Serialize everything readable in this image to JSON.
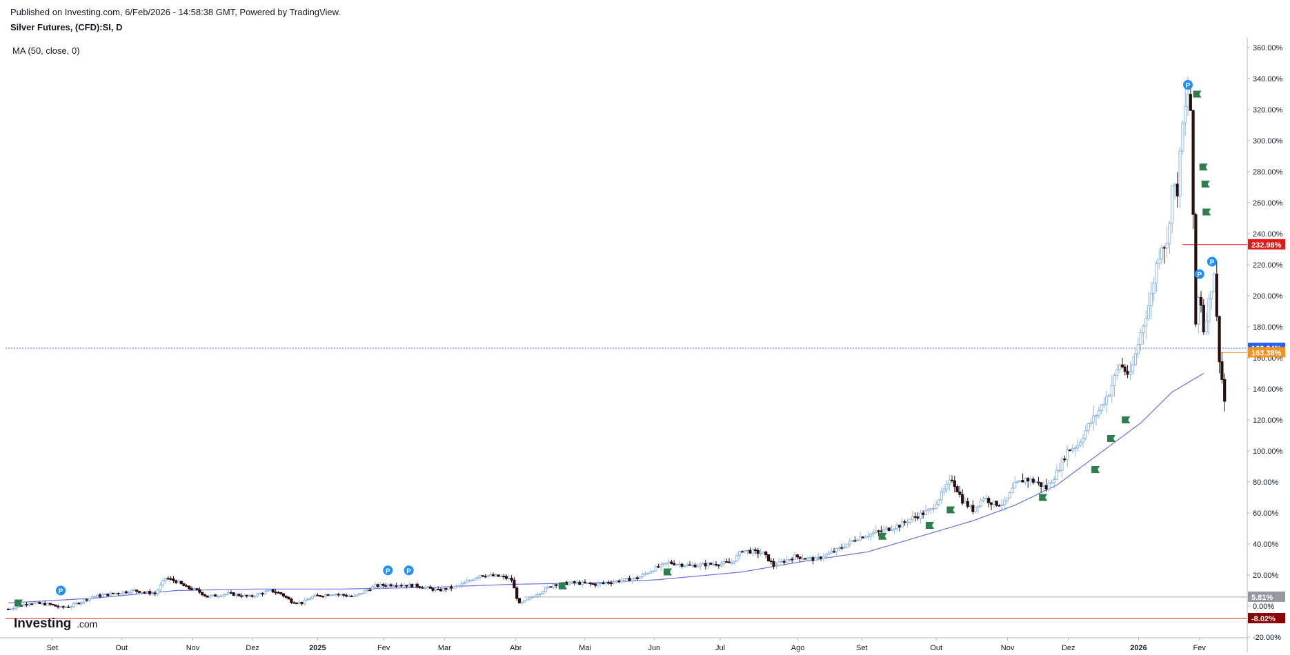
{
  "header": {
    "published": "Published on Investing.com, 6/Feb/2026 - 14:58:38 GMT, Powered by TradingView.",
    "symbol": "Silver Futures, (CFD):SI, D",
    "indicator": "MA (50, close, 0)"
  },
  "logo": {
    "brand": "Investing",
    "suffix": ".com"
  },
  "colors": {
    "up": "#8fb7e3",
    "down": "#2a0d0d",
    "ma": "#6a6ee8",
    "grid": "#e0e3eb",
    "red_line": "#e31919",
    "orange_line": "#f7931a",
    "blue_dotted": "#2962ff",
    "flag": "#2e7d4f",
    "p_marker": "#1e90ff"
  },
  "chart_data": {
    "type": "candlestick",
    "title": "Silver Futures, (CFD):SI, D",
    "ylim": [
      -30,
      360
    ],
    "y_unit": "%",
    "grid": false,
    "y_ticks": [
      "360.00%",
      "340.00%",
      "320.00%",
      "300.00%",
      "280.00%",
      "260.00%",
      "240.00%",
      "220.00%",
      "200.00%",
      "180.00%",
      "160.00%",
      "140.00%",
      "120.00%",
      "100.00%",
      "80.00%",
      "60.00%",
      "40.00%",
      "20.00%",
      "0.00%",
      "-20.00%"
    ],
    "x_ticks": [
      {
        "label": "Set",
        "t": 4.2,
        "bold": false
      },
      {
        "label": "Out",
        "t": 10.8,
        "bold": false
      },
      {
        "label": "Nov",
        "t": 17.6,
        "bold": false
      },
      {
        "label": "Dez",
        "t": 23.3,
        "bold": false
      },
      {
        "label": "2025",
        "t": 29.5,
        "bold": true
      },
      {
        "label": "Fev",
        "t": 35.8,
        "bold": false
      },
      {
        "label": "Mar",
        "t": 41.6,
        "bold": false
      },
      {
        "label": "Abr",
        "t": 48.4,
        "bold": false
      },
      {
        "label": "Mai",
        "t": 55.0,
        "bold": false
      },
      {
        "label": "Jun",
        "t": 61.6,
        "bold": false
      },
      {
        "label": "Jul",
        "t": 67.9,
        "bold": false
      },
      {
        "label": "Ago",
        "t": 75.3,
        "bold": false
      },
      {
        "label": "Set",
        "t": 81.4,
        "bold": false
      },
      {
        "label": "Out",
        "t": 88.5,
        "bold": false
      },
      {
        "label": "Nov",
        "t": 95.3,
        "bold": false
      },
      {
        "label": "Dez",
        "t": 101.1,
        "bold": false
      },
      {
        "label": "2026",
        "t": 107.8,
        "bold": true
      },
      {
        "label": "Fev",
        "t": 113.6,
        "bold": false
      }
    ],
    "price_anchors": [
      [
        0,
        -2
      ],
      [
        2,
        2
      ],
      [
        4,
        1
      ],
      [
        5,
        -1
      ],
      [
        6,
        0
      ],
      [
        8,
        6
      ],
      [
        10,
        8
      ],
      [
        12,
        10
      ],
      [
        14,
        8
      ],
      [
        15,
        18
      ],
      [
        16,
        16
      ],
      [
        17,
        12
      ],
      [
        18,
        10
      ],
      [
        19,
        6
      ],
      [
        21,
        8
      ],
      [
        23,
        6
      ],
      [
        25,
        10
      ],
      [
        26,
        8
      ],
      [
        27,
        3
      ],
      [
        28,
        2
      ],
      [
        29,
        6
      ],
      [
        31,
        8
      ],
      [
        33,
        6
      ],
      [
        35,
        13
      ],
      [
        37,
        14
      ],
      [
        39,
        13
      ],
      [
        41,
        10
      ],
      [
        43,
        13
      ],
      [
        45,
        20
      ],
      [
        47,
        19
      ],
      [
        48,
        17
      ],
      [
        48.7,
        1
      ],
      [
        50,
        6
      ],
      [
        52,
        14
      ],
      [
        54,
        15
      ],
      [
        56,
        14
      ],
      [
        58,
        16
      ],
      [
        60,
        18
      ],
      [
        61.6,
        24
      ],
      [
        63,
        28
      ],
      [
        65,
        26
      ],
      [
        67,
        27
      ],
      [
        69,
        28
      ],
      [
        70,
        36
      ],
      [
        72,
        34
      ],
      [
        73,
        26
      ],
      [
        75,
        32
      ],
      [
        77,
        30
      ],
      [
        79,
        36
      ],
      [
        81,
        44
      ],
      [
        83,
        48
      ],
      [
        85,
        52
      ],
      [
        86,
        56
      ],
      [
        88,
        62
      ],
      [
        89,
        72
      ],
      [
        90,
        82
      ],
      [
        91,
        68
      ],
      [
        92,
        62
      ],
      [
        93,
        70
      ],
      [
        94,
        66
      ],
      [
        95,
        66
      ],
      [
        96,
        78
      ],
      [
        97,
        82
      ],
      [
        98,
        80
      ],
      [
        99,
        76
      ],
      [
        100,
        86
      ],
      [
        101,
        100
      ],
      [
        102,
        104
      ],
      [
        103,
        116
      ],
      [
        104,
        126
      ],
      [
        105,
        138
      ],
      [
        106,
        156
      ],
      [
        107,
        148
      ],
      [
        108,
        176
      ],
      [
        109,
        200
      ],
      [
        109.5,
        220
      ],
      [
        110,
        234
      ],
      [
        110.5,
        232
      ],
      [
        111,
        270
      ],
      [
        111.5,
        268
      ],
      [
        112,
        310
      ],
      [
        112.5,
        330
      ],
      [
        112.8,
        318
      ],
      [
        113.2,
        178
      ],
      [
        113.6,
        206
      ],
      [
        114,
        178
      ],
      [
        114.5,
        196
      ],
      [
        115,
        216
      ],
      [
        115.4,
        166
      ],
      [
        116,
        132
      ]
    ],
    "ma50_anchors": [
      [
        0,
        2
      ],
      [
        8,
        5
      ],
      [
        16,
        10
      ],
      [
        24,
        11
      ],
      [
        32,
        11
      ],
      [
        40,
        12
      ],
      [
        48,
        14
      ],
      [
        56,
        15
      ],
      [
        62,
        17
      ],
      [
        70,
        22
      ],
      [
        76,
        29
      ],
      [
        82,
        35
      ],
      [
        88,
        47
      ],
      [
        92,
        55
      ],
      [
        96,
        65
      ],
      [
        100,
        78
      ],
      [
        104,
        98
      ],
      [
        108,
        118
      ],
      [
        111,
        138
      ],
      [
        113,
        146
      ],
      [
        114,
        150
      ]
    ],
    "annotations": {
      "levels": [
        {
          "label": "232.98%",
          "value": 232.98,
          "color": "#e31919",
          "style": "solid"
        },
        {
          "label": "166.24%",
          "value": 166.24,
          "color": "#2962ff",
          "style": "dotted"
        },
        {
          "label": "163.38%",
          "value": 163.38,
          "color": "#f7931a",
          "style": "solid"
        },
        {
          "label": "5.81%",
          "value": 5.81,
          "color": "#a0a4ab",
          "style": "solid"
        },
        {
          "label": "-8.02%",
          "value": -8.02,
          "color": "#e31919",
          "style": "solid"
        }
      ],
      "p_markers": [
        [
          5,
          10
        ],
        [
          36.2,
          23
        ],
        [
          38.2,
          23
        ],
        [
          112.5,
          336
        ],
        [
          113.6,
          214
        ],
        [
          114.8,
          222
        ]
      ],
      "flags": [
        [
          0.6,
          2
        ],
        [
          52.5,
          13
        ],
        [
          62.5,
          22
        ],
        [
          83,
          45
        ],
        [
          87.5,
          52
        ],
        [
          89.5,
          62
        ],
        [
          98.3,
          70
        ],
        [
          103.3,
          88
        ],
        [
          104.8,
          108
        ],
        [
          106.2,
          120
        ],
        [
          113,
          330
        ],
        [
          113.6,
          283
        ],
        [
          113.8,
          272
        ],
        [
          113.9,
          254
        ]
      ]
    }
  }
}
